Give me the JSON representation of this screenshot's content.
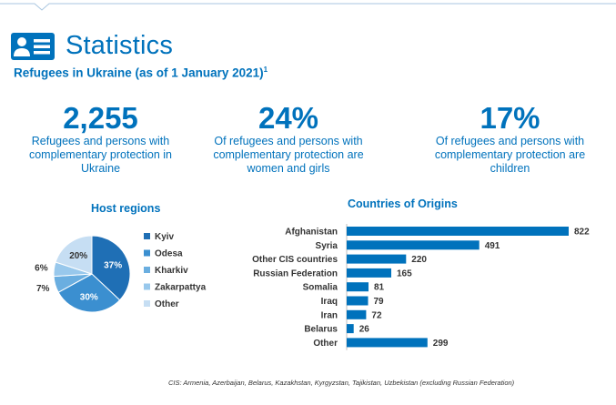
{
  "page": {
    "title": "Statistics",
    "subtitle": "Refugees in Ukraine (as of 1 January 2021)",
    "subtitle_sup": "1",
    "footnote": "CIS: Armenia, Azerbaijan, Belarus, Kazakhstan, Kyrgyzstan, Tajikistan, Uzbekistan (excluding Russian Federation)",
    "icon": "id-card-icon"
  },
  "stats": [
    {
      "value": "2,255",
      "description": "Refugees and persons with complementary protection in Ukraine"
    },
    {
      "value": "24%",
      "description": "Of refugees and persons with complementary protection are women and girls"
    },
    {
      "value": "17%",
      "description": "Of refugees and persons with complementary protection are children"
    }
  ],
  "colors": {
    "brand": "#0072bc",
    "pie": [
      "#1f6fb5",
      "#3b8fd0",
      "#6aaee0",
      "#98c8ec",
      "#c6def3"
    ]
  },
  "chart_data": [
    {
      "type": "pie",
      "title": "Host regions",
      "categories": [
        "Kyiv",
        "Odesa",
        "Kharkiv",
        "Zakarpattya",
        "Other"
      ],
      "values": [
        37,
        30,
        7,
        6,
        20
      ],
      "slice_labels": [
        "37%",
        "30%",
        "7%",
        "6%",
        "20%"
      ],
      "legend": "right"
    },
    {
      "type": "bar",
      "orientation": "horizontal",
      "title": "Countries of Origins",
      "categories": [
        "Afghanistan",
        "Syria",
        "Other CIS countries",
        "Russian Federation",
        "Somalia",
        "Iraq",
        "Iran",
        "Belarus",
        "Other"
      ],
      "values": [
        822,
        491,
        220,
        165,
        81,
        79,
        72,
        26,
        299
      ],
      "xlim": [
        0,
        822
      ],
      "grid": false
    }
  ]
}
